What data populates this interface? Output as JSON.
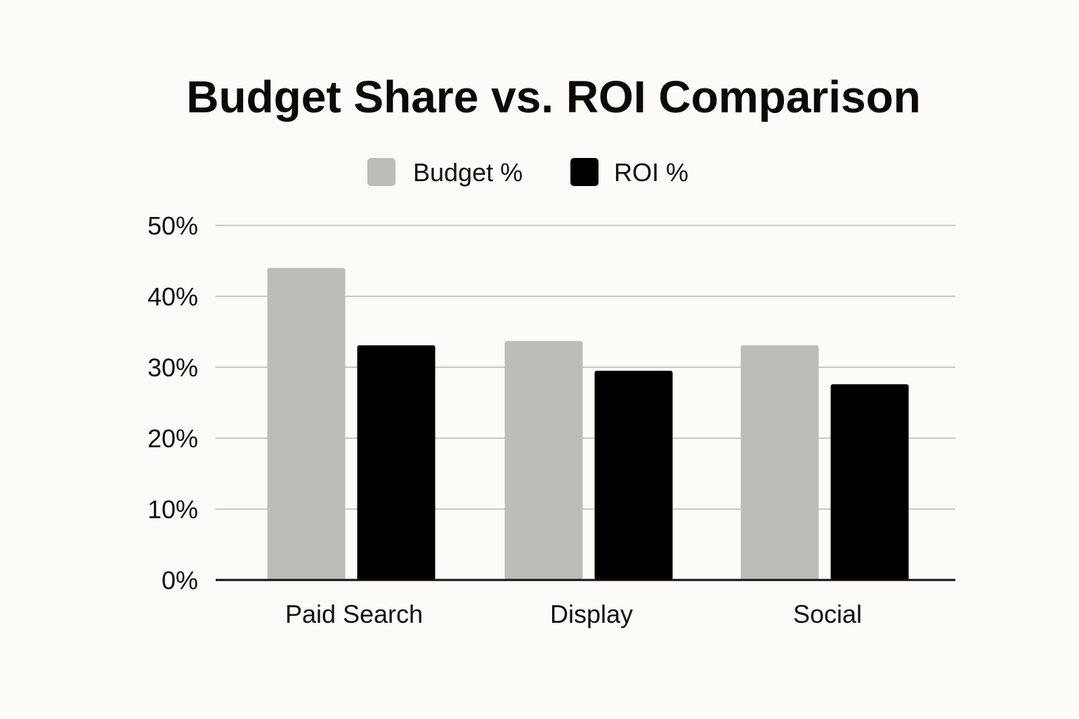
{
  "chart_data": {
    "type": "bar",
    "title": "Budget Share vs. ROI Comparison",
    "xlabel": "",
    "ylabel": "",
    "categories": [
      "Paid Search",
      "Display",
      "Social"
    ],
    "series": [
      {
        "name": "Budget %",
        "color": "#bdbcb9",
        "values": [
          44,
          33.7,
          33.1
        ]
      },
      {
        "name": "ROI %",
        "color": "#000000",
        "values": [
          33.1,
          29.5,
          27.6
        ]
      }
    ],
    "ylim": [
      0,
      50
    ],
    "yticks": [
      0,
      10,
      20,
      30,
      40,
      50
    ],
    "ytick_labels": [
      "0%",
      "10%",
      "20%",
      "30%",
      "40%",
      "50%"
    ],
    "grid": true,
    "legend_position": "top-center",
    "colors": {
      "background": "#fcfbf7",
      "grid": "#c9c8c4",
      "axis": "#111111"
    }
  }
}
